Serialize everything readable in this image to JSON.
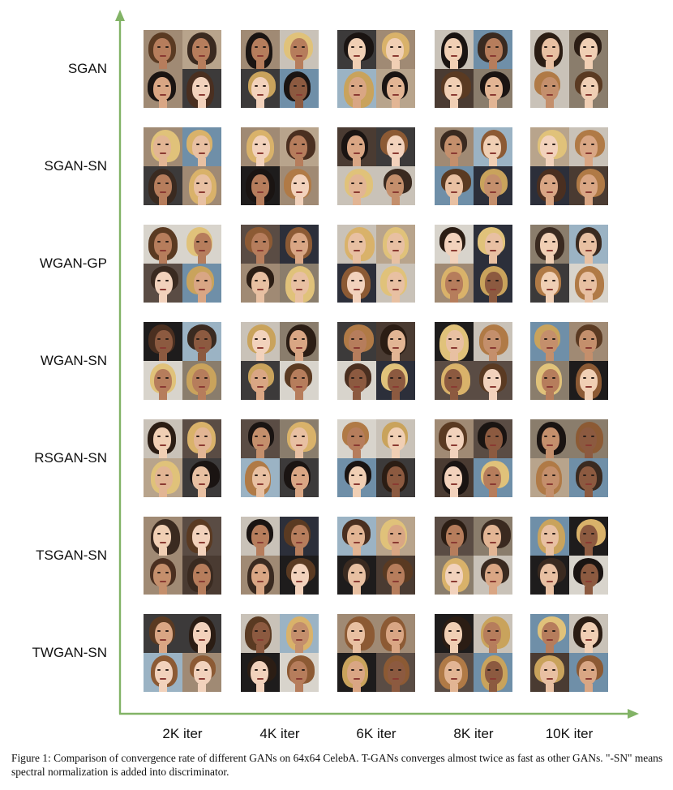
{
  "figure": {
    "rows": [
      "SGAN",
      "SGAN-SN",
      "WGAN-GP",
      "WGAN-SN",
      "RSGAN-SN",
      "TSGAN-SN",
      "TWGAN-SN"
    ],
    "columns": [
      "2K iter",
      "4K iter",
      "6K iter",
      "8K iter",
      "10K iter"
    ],
    "caption": "Figure 1: Comparison of convergence rate of different GANs on 64x64 CelebA. T-GANs converges almost twice as fast as other GANs. \"-SN\" means spectral normalization is added into discriminator.",
    "axis_color": "#82b366"
  }
}
